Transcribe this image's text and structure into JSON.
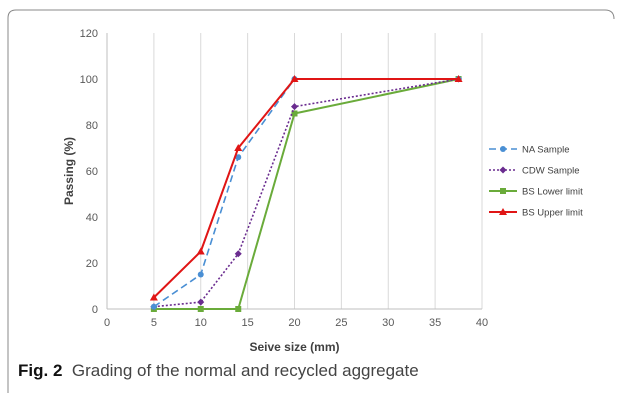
{
  "caption": {
    "label": "Fig. 2",
    "text": "Grading of the normal and recycled aggregate"
  },
  "chart_data": {
    "type": "line",
    "title": "",
    "xlabel": "Seive size (mm)",
    "ylabel": "Passing (%)",
    "xlim": [
      0,
      40
    ],
    "ylim": [
      0,
      120
    ],
    "xticks": [
      0,
      5,
      10,
      15,
      20,
      25,
      30,
      35,
      40
    ],
    "yticks": [
      0,
      20,
      40,
      60,
      80,
      100,
      120
    ],
    "grid": "vertical",
    "legend": "right",
    "series": [
      {
        "name": "NA Sample",
        "color": "#4a8fd4",
        "marker": "circle",
        "line": "dashed",
        "x": [
          5,
          10,
          14,
          20,
          37.5
        ],
        "y": [
          1,
          15,
          66,
          100,
          100
        ]
      },
      {
        "name": "CDW Sample",
        "color": "#6a2c8f",
        "marker": "diamond",
        "line": "dotted",
        "x": [
          5,
          10,
          14,
          20,
          37.5
        ],
        "y": [
          1,
          3,
          24,
          88,
          100
        ]
      },
      {
        "name": "BS Lower limit",
        "color": "#6aab3a",
        "marker": "square",
        "line": "solid",
        "x": [
          5,
          10,
          14,
          20,
          37.5
        ],
        "y": [
          0,
          0,
          0,
          85,
          100
        ]
      },
      {
        "name": "BS Upper limit",
        "color": "#e01515",
        "marker": "triangle",
        "line": "solid",
        "x": [
          5,
          10,
          14,
          20,
          37.5
        ],
        "y": [
          5,
          25,
          70,
          100,
          100
        ]
      }
    ]
  }
}
